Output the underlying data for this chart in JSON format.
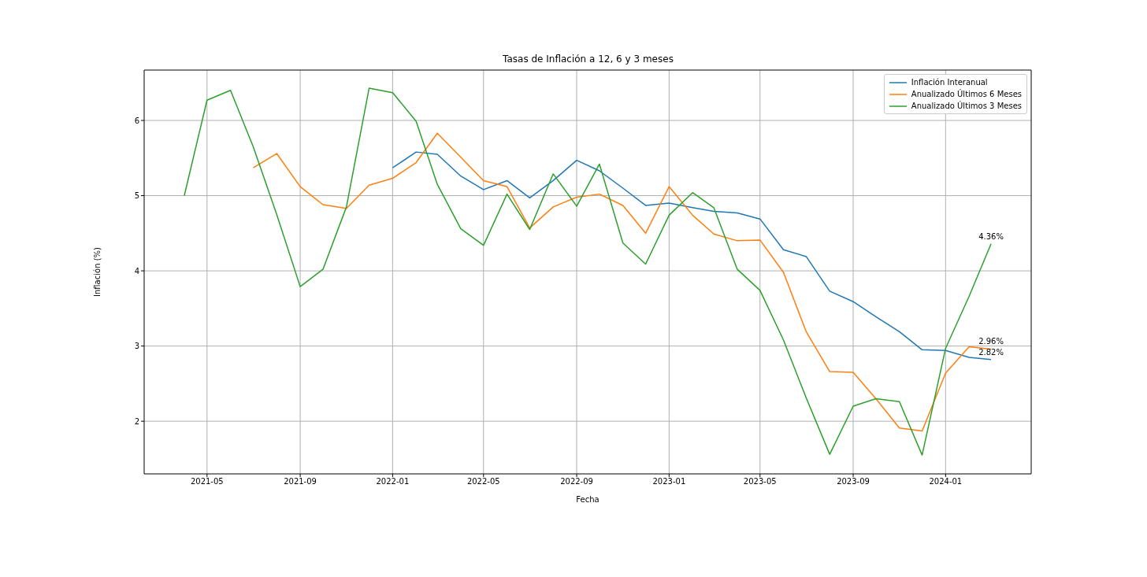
{
  "chart_data": {
    "type": "line",
    "title": "Tasas de Inflación a 12, 6 y 3 meses",
    "xlabel": "Fecha",
    "ylabel": "Inflación (%)",
    "x": [
      "2021-04",
      "2021-05",
      "2021-06",
      "2021-07",
      "2021-08",
      "2021-09",
      "2021-10",
      "2021-11",
      "2021-12",
      "2022-01",
      "2022-02",
      "2022-03",
      "2022-04",
      "2022-05",
      "2022-06",
      "2022-07",
      "2022-08",
      "2022-09",
      "2022-10",
      "2022-11",
      "2022-12",
      "2023-01",
      "2023-02",
      "2023-03",
      "2023-04",
      "2023-05",
      "2023-06",
      "2023-07",
      "2023-08",
      "2023-09",
      "2023-10",
      "2023-11",
      "2023-12",
      "2024-01",
      "2024-02",
      "2024-03"
    ],
    "series": [
      {
        "name": "Inflación Interanual",
        "color": "#1f77b4",
        "values": [
          null,
          null,
          null,
          null,
          null,
          null,
          null,
          null,
          null,
          5.37,
          5.58,
          5.55,
          5.26,
          5.08,
          5.2,
          4.97,
          5.2,
          5.47,
          5.33,
          5.1,
          4.87,
          4.9,
          4.84,
          4.79,
          4.77,
          4.69,
          4.28,
          4.19,
          3.73,
          3.59,
          3.39,
          3.19,
          2.95,
          2.94,
          2.85,
          2.82
        ]
      },
      {
        "name": "Anualizado Últimos 6 Meses",
        "color": "#ff7f0e",
        "values": [
          null,
          null,
          null,
          5.37,
          5.56,
          5.12,
          4.88,
          4.83,
          5.14,
          5.23,
          5.44,
          5.83,
          5.51,
          5.2,
          5.12,
          4.57,
          4.85,
          4.98,
          5.02,
          4.87,
          4.5,
          5.12,
          4.74,
          4.49,
          4.4,
          4.41,
          3.98,
          3.19,
          2.66,
          2.65,
          2.3,
          1.91,
          1.87,
          2.64,
          2.99,
          2.96
        ]
      },
      {
        "name": "Anualizado Últimos 3 Meses",
        "color": "#2ca02c",
        "values": [
          5.0,
          6.27,
          6.4,
          5.65,
          4.75,
          3.79,
          4.02,
          4.85,
          6.43,
          6.37,
          5.99,
          5.15,
          4.56,
          4.34,
          5.02,
          4.55,
          5.29,
          4.86,
          5.42,
          4.37,
          4.09,
          4.74,
          5.04,
          4.84,
          4.02,
          3.74,
          3.08,
          2.31,
          1.56,
          2.2,
          2.3,
          2.26,
          1.55,
          2.97,
          3.66,
          4.36
        ]
      }
    ],
    "annotations": [
      {
        "text": "4.36%",
        "x": "2024-03",
        "y": 4.36
      },
      {
        "text": "2.96%",
        "x": "2024-03",
        "y": 2.96
      },
      {
        "text": "2.82%",
        "x": "2024-03",
        "y": 2.82
      }
    ],
    "xlim": [
      "2021-02-07",
      "2024-04-23"
    ],
    "xticks": [
      "2021-05",
      "2021-09",
      "2022-01",
      "2022-05",
      "2022-09",
      "2023-01",
      "2023-05",
      "2023-09",
      "2024-01"
    ],
    "ylim": [
      1.3,
      6.67
    ],
    "yticks": [
      2,
      3,
      4,
      5,
      6
    ],
    "grid": true,
    "legend": "top right",
    "line_style": "solid",
    "marker": "none"
  }
}
